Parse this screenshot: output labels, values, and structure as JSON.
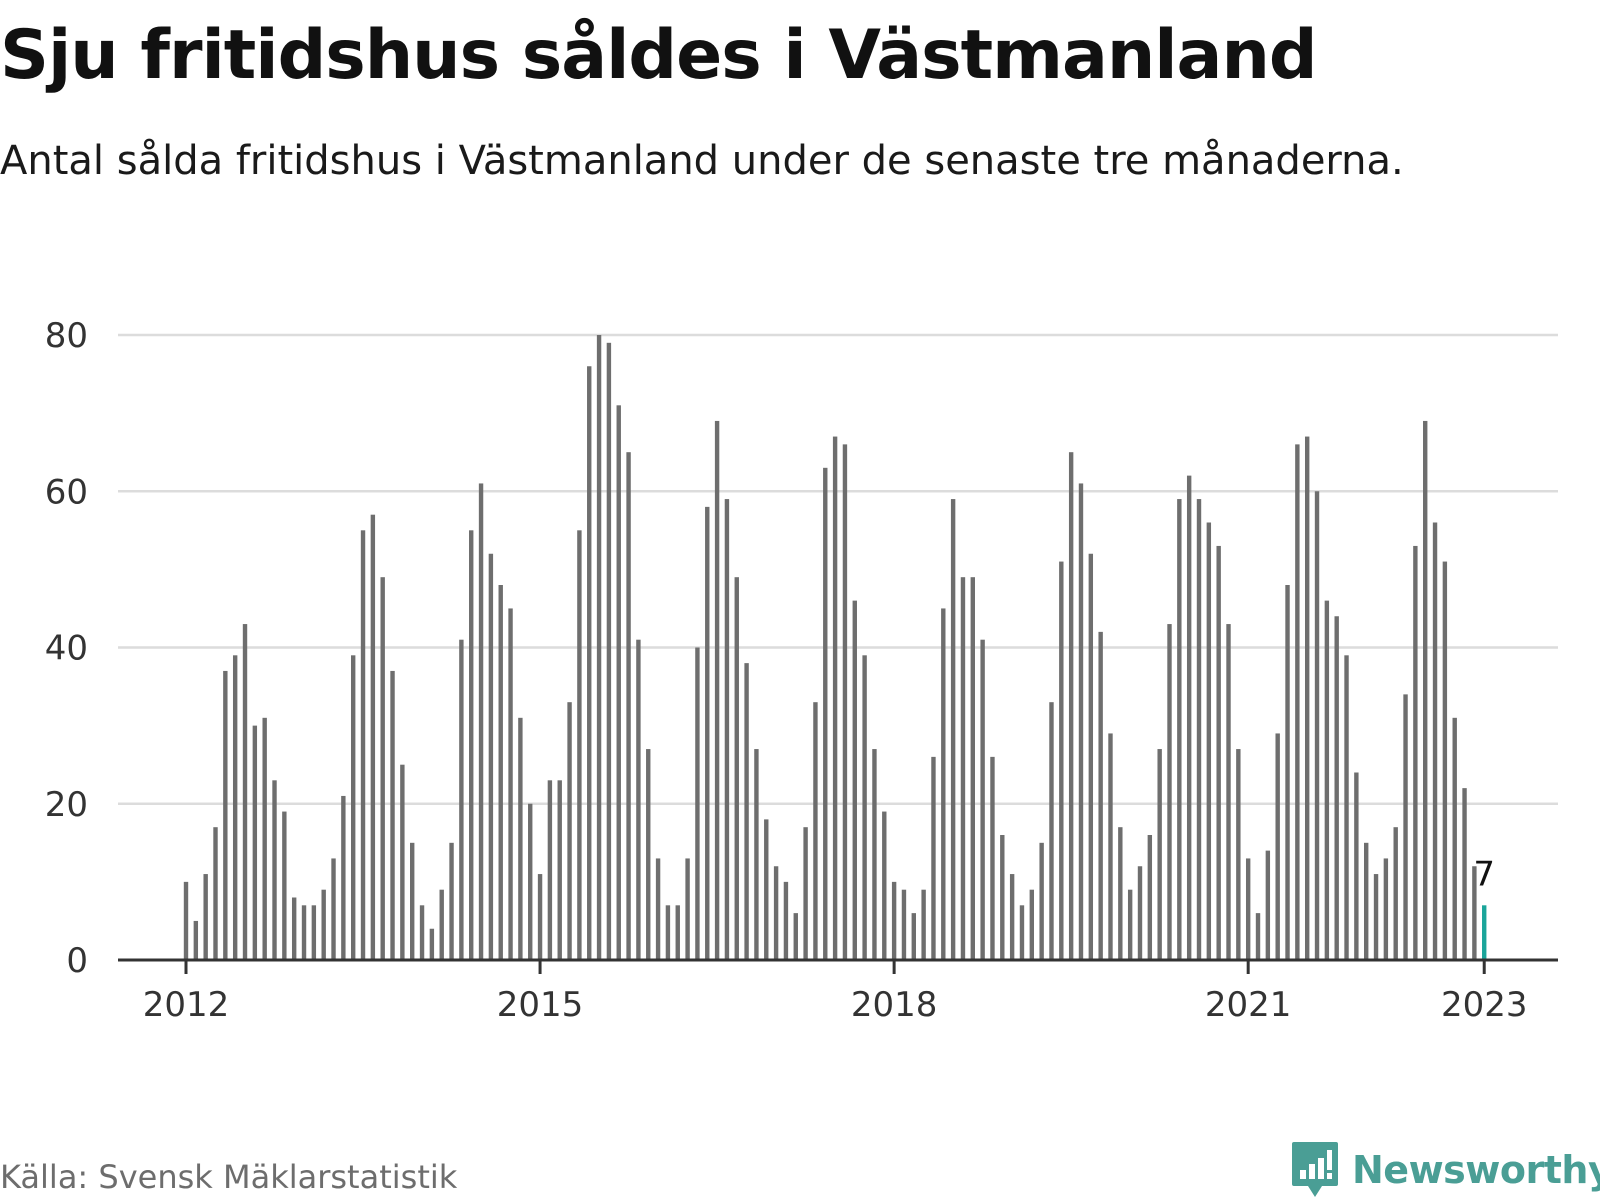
{
  "title": "Sju fritidshus såldes i Västmanland",
  "subtitle": "Antal sålda fritidshus i Västmanland under de senaste tre månaderna.",
  "source": "Källa: Svensk Mäklarstatistik",
  "brand": "Newsworthy",
  "colors": {
    "bar": "#6e6e6e",
    "highlight": "#1aa59a",
    "grid": "#dcdcdc",
    "axis": "#333333",
    "brand": "#4a9e95"
  },
  "chart_data": {
    "type": "bar",
    "x_start": "2012-01",
    "x_step": "month",
    "values": [
      10,
      5,
      11,
      17,
      37,
      39,
      43,
      30,
      31,
      23,
      19,
      8,
      7,
      7,
      9,
      13,
      21,
      39,
      55,
      57,
      49,
      37,
      25,
      15,
      7,
      4,
      9,
      15,
      41,
      55,
      61,
      52,
      48,
      45,
      31,
      20,
      11,
      23,
      23,
      33,
      55,
      76,
      80,
      79,
      71,
      65,
      41,
      27,
      13,
      7,
      7,
      13,
      40,
      58,
      69,
      59,
      49,
      38,
      27,
      18,
      12,
      10,
      6,
      17,
      33,
      63,
      67,
      66,
      46,
      39,
      27,
      19,
      10,
      9,
      6,
      9,
      26,
      45,
      59,
      49,
      49,
      41,
      26,
      16,
      11,
      7,
      9,
      15,
      33,
      51,
      65,
      61,
      52,
      42,
      29,
      17,
      9,
      12,
      16,
      27,
      43,
      59,
      62,
      59,
      56,
      53,
      43,
      27,
      13,
      6,
      14,
      29,
      48,
      66,
      67,
      60,
      46,
      44,
      39,
      24,
      15,
      11,
      13,
      17,
      34,
      53,
      69,
      56,
      51,
      31,
      22,
      12,
      7
    ],
    "highlight_last": true,
    "highlight_label": "7",
    "yticks": [
      0,
      20,
      40,
      60,
      80
    ],
    "ylim": [
      0,
      80
    ],
    "xticks": [
      {
        "label": "2012",
        "index": 0
      },
      {
        "label": "2015",
        "index": 36
      },
      {
        "label": "2018",
        "index": 72
      },
      {
        "label": "2021",
        "index": 108
      },
      {
        "label": "2023",
        "index": 132
      }
    ],
    "grid": true
  }
}
